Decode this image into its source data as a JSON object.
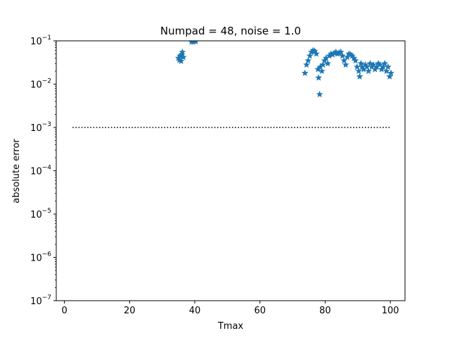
{
  "chart_data": {
    "type": "scatter",
    "title": "Numpad = 48, noise = 1.0",
    "xlabel": "Tmax",
    "ylabel": "absolute error",
    "xlim": [
      -2.5,
      104.5
    ],
    "ylim": [
      1e-07,
      0.1
    ],
    "yscale": "log",
    "grid": false,
    "marker": "star",
    "marker_color": "#1f77b4",
    "xticks": [
      0,
      20,
      40,
      60,
      80,
      100
    ],
    "xtick_labels": [
      "0",
      "20",
      "40",
      "60",
      "80",
      "100"
    ],
    "yticks": [
      1e-07,
      1e-06,
      1e-05,
      0.0001,
      0.001,
      0.01,
      0.1
    ],
    "ytick_labels": [
      {
        "base": "10",
        "exp": "−7"
      },
      {
        "base": "10",
        "exp": "−6"
      },
      {
        "base": "10",
        "exp": "−5"
      },
      {
        "base": "10",
        "exp": "−4"
      },
      {
        "base": "10",
        "exp": "−3"
      },
      {
        "base": "10",
        "exp": "−2"
      },
      {
        "base": "10",
        "exp": "−1"
      }
    ],
    "reference_line": {
      "x": [
        2.5,
        100
      ],
      "y": 0.001,
      "style": "dotted",
      "color": "#000000"
    },
    "series": [
      {
        "x": [
          35.0,
          35.3,
          35.5,
          35.8,
          36.0,
          36.2,
          36.5,
          39.0,
          39.3,
          39.6,
          40.0,
          40.3,
          73.8,
          74.3,
          74.8,
          75.3,
          75.8,
          76.3,
          76.8,
          77.3,
          77.8,
          78.0,
          78.3,
          78.5,
          79.0,
          79.3,
          79.8,
          80.3,
          80.8,
          81.3,
          81.8,
          82.3,
          82.8,
          83.3,
          83.8,
          84.3,
          84.8,
          85.3,
          85.8,
          86.3,
          86.8,
          87.3,
          87.8,
          88.3,
          88.8,
          89.3,
          89.8,
          90.3,
          90.6,
          91.0,
          91.3,
          91.8,
          92.3,
          92.8,
          93.3,
          93.8,
          94.3,
          94.8,
          95.3,
          95.8,
          96.3,
          96.8,
          97.3,
          97.8,
          98.3,
          98.8,
          99.3,
          99.8,
          100.2
        ],
        "y": [
          0.04,
          0.036,
          0.045,
          0.034,
          0.048,
          0.055,
          0.042,
          0.095,
          0.098,
          0.095,
          0.1,
          0.097,
          0.018,
          0.028,
          0.035,
          0.045,
          0.055,
          0.06,
          0.058,
          0.05,
          0.022,
          0.014,
          0.0058,
          0.025,
          0.02,
          0.028,
          0.035,
          0.04,
          0.03,
          0.045,
          0.05,
          0.048,
          0.052,
          0.055,
          0.05,
          0.053,
          0.055,
          0.045,
          0.035,
          0.028,
          0.042,
          0.05,
          0.048,
          0.045,
          0.04,
          0.035,
          0.025,
          0.02,
          0.015,
          0.03,
          0.025,
          0.022,
          0.028,
          0.025,
          0.02,
          0.03,
          0.025,
          0.028,
          0.022,
          0.025,
          0.03,
          0.028,
          0.022,
          0.025,
          0.03,
          0.02,
          0.025,
          0.015,
          0.018
        ]
      }
    ]
  }
}
